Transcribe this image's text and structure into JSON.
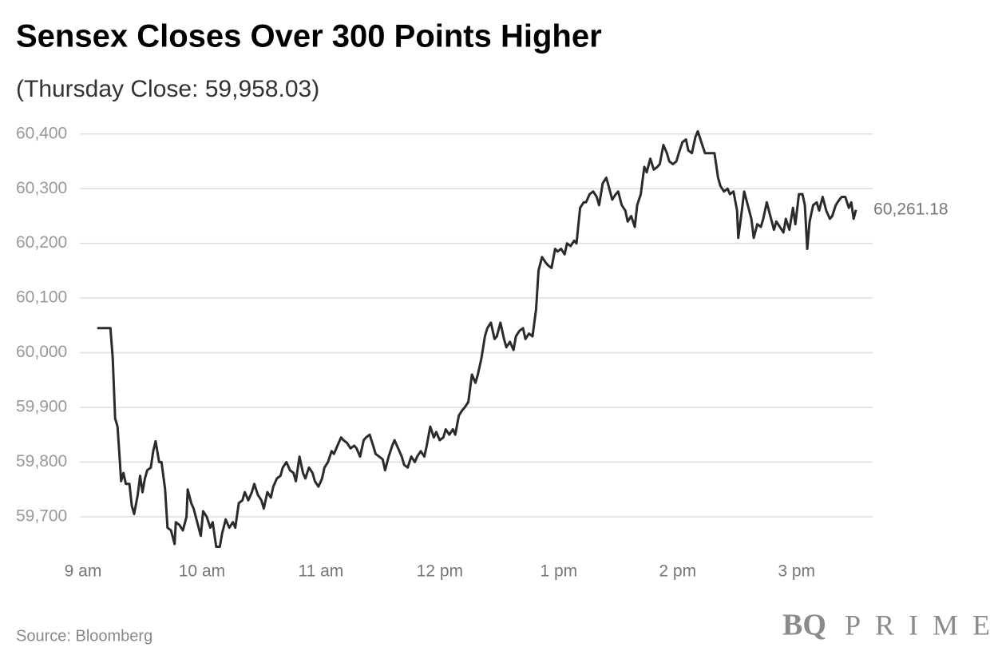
{
  "chart_data": {
    "type": "line",
    "title": "Sensex Closes Over 300 Points Higher",
    "subtitle": "(Thursday Close: 59,958.03)",
    "source": "Source: Bloomberg",
    "brand": [
      "BQ",
      "PRIME"
    ],
    "xlim": [
      9,
      15.64
    ],
    "ylim": [
      59637,
      60426
    ],
    "xticks": [
      {
        "value": 9,
        "label": "9 am"
      },
      {
        "value": 10,
        "label": "10 am"
      },
      {
        "value": 11,
        "label": "11 am"
      },
      {
        "value": 12,
        "label": "12 pm"
      },
      {
        "value": 13,
        "label": "1 pm"
      },
      {
        "value": 14,
        "label": "2 pm"
      },
      {
        "value": 15,
        "label": "3 pm"
      }
    ],
    "yticks": [
      {
        "value": 59700,
        "label": "59,700"
      },
      {
        "value": 59800,
        "label": "59,800"
      },
      {
        "value": 59900,
        "label": "59,900"
      },
      {
        "value": 60000,
        "label": "60,000"
      },
      {
        "value": 60100,
        "label": "60,100"
      },
      {
        "value": 60200,
        "label": "60,200"
      },
      {
        "value": 60300,
        "label": "60,300"
      },
      {
        "value": 60400,
        "label": "60,400"
      }
    ],
    "grid": true,
    "annotations": [
      {
        "x": 15.5,
        "y": 60261.18,
        "text": "60,261.18"
      }
    ],
    "series": [
      {
        "name": "Sensex",
        "color": "#2b2b2e",
        "x": [
          9.12,
          9.23,
          9.25,
          9.27,
          9.29,
          9.31,
          9.32,
          9.34,
          9.36,
          9.39,
          9.41,
          9.43,
          9.46,
          9.48,
          9.5,
          9.52,
          9.54,
          9.57,
          9.59,
          9.61,
          9.64,
          9.66,
          9.69,
          9.71,
          9.74,
          9.77,
          9.78,
          9.81,
          9.84,
          9.87,
          9.88,
          9.91,
          9.93,
          9.96,
          9.99,
          10.01,
          10.04,
          10.07,
          10.09,
          10.12,
          10.15,
          10.17,
          10.2,
          10.23,
          10.26,
          10.28,
          10.31,
          10.34,
          10.36,
          10.39,
          10.42,
          10.44,
          10.47,
          10.5,
          10.52,
          10.55,
          10.58,
          10.6,
          10.63,
          10.66,
          10.68,
          10.71,
          10.74,
          10.77,
          10.79,
          10.82,
          10.85,
          10.87,
          10.9,
          10.93,
          10.95,
          10.98,
          11.01,
          11.03,
          11.06,
          11.09,
          11.11,
          11.14,
          11.17,
          11.19,
          11.22,
          11.25,
          11.28,
          11.3,
          11.33,
          11.36,
          11.38,
          11.41,
          11.44,
          11.46,
          11.49,
          11.52,
          11.54,
          11.57,
          11.6,
          11.62,
          11.65,
          11.68,
          11.7,
          11.73,
          11.76,
          11.79,
          11.81,
          11.84,
          11.87,
          11.89,
          11.92,
          11.95,
          11.97,
          12.0,
          12.03,
          12.05,
          12.08,
          12.11,
          12.13,
          12.16,
          12.19,
          12.21,
          12.24,
          12.27,
          12.3,
          12.32,
          12.35,
          12.38,
          12.4,
          12.43,
          12.46,
          12.48,
          12.51,
          12.54,
          12.56,
          12.59,
          12.62,
          12.64,
          12.67,
          12.7,
          12.72,
          12.75,
          12.78,
          12.81,
          12.83,
          12.86,
          12.89,
          12.91,
          12.94,
          12.97,
          12.99,
          13.02,
          13.05,
          13.07,
          13.1,
          13.13,
          13.15,
          13.18,
          13.21,
          13.23,
          13.26,
          13.29,
          13.32,
          13.34,
          13.37,
          13.4,
          13.42,
          13.45,
          13.48,
          13.5,
          13.53,
          13.56,
          13.58,
          13.61,
          13.64,
          13.66,
          13.69,
          13.72,
          13.74,
          13.77,
          13.8,
          13.83,
          13.85,
          13.88,
          13.91,
          13.93,
          13.96,
          13.99,
          14.01,
          14.04,
          14.07,
          14.09,
          14.12,
          14.15,
          14.17,
          14.2,
          14.23,
          14.25,
          14.28,
          14.31,
          14.34,
          14.36,
          14.39,
          14.42,
          14.44,
          14.47,
          14.5,
          14.51,
          14.54,
          14.56,
          14.59,
          14.62,
          14.64,
          14.67,
          14.7,
          14.72,
          14.75,
          14.78,
          14.81,
          14.83,
          14.86,
          14.89,
          14.91,
          14.94,
          14.97,
          14.99,
          15.02,
          15.05,
          15.07,
          15.09,
          15.11,
          15.14,
          15.17,
          15.19,
          15.22,
          15.25,
          15.28,
          15.3,
          15.33,
          15.36,
          15.38,
          15.41,
          15.44,
          15.46,
          15.48,
          15.5
        ],
        "values": [
          60045,
          60045,
          59990,
          59880,
          59865,
          59800,
          59765,
          59780,
          59760,
          59760,
          59720,
          59705,
          59740,
          59775,
          59745,
          59770,
          59785,
          59790,
          59820,
          59838,
          59800,
          59800,
          59750,
          59680,
          59675,
          59650,
          59690,
          59685,
          59675,
          59700,
          59750,
          59725,
          59715,
          59690,
          59665,
          59710,
          59700,
          59680,
          59690,
          59645,
          59645,
          59670,
          59695,
          59680,
          59690,
          59680,
          59725,
          59730,
          59745,
          59730,
          59745,
          59760,
          59740,
          59730,
          59715,
          59745,
          59735,
          59755,
          59770,
          59775,
          59790,
          59800,
          59785,
          59780,
          59765,
          59810,
          59780,
          59770,
          59790,
          59780,
          59765,
          59755,
          59770,
          59790,
          59800,
          59820,
          59815,
          59830,
          59845,
          59840,
          59835,
          59825,
          59830,
          59825,
          59810,
          59840,
          59845,
          59850,
          59830,
          59815,
          59810,
          59805,
          59785,
          59810,
          59830,
          59840,
          59825,
          59810,
          59795,
          59790,
          59810,
          59800,
          59810,
          59820,
          59810,
          59830,
          59865,
          59845,
          59855,
          59840,
          59845,
          59860,
          59850,
          59860,
          59850,
          59885,
          59895,
          59900,
          59910,
          59960,
          59945,
          59960,
          59990,
          60030,
          60045,
          60055,
          60025,
          60030,
          60055,
          60025,
          60010,
          60020,
          60005,
          60030,
          60040,
          60045,
          60025,
          60035,
          60030,
          60080,
          60150,
          60175,
          60165,
          60160,
          60155,
          60190,
          60185,
          60190,
          60180,
          60200,
          60195,
          60205,
          60200,
          60265,
          60275,
          60275,
          60290,
          60295,
          60285,
          60270,
          60310,
          60320,
          60305,
          60280,
          60290,
          60295,
          60270,
          60260,
          60240,
          60250,
          60230,
          60270,
          60290,
          60340,
          60330,
          60355,
          60335,
          60340,
          60345,
          60380,
          60365,
          60350,
          60345,
          60350,
          60365,
          60385,
          60390,
          60370,
          60365,
          60395,
          60405,
          60385,
          60365,
          60365,
          60365,
          60365,
          60320,
          60305,
          60295,
          60300,
          60290,
          60295,
          60260,
          60210,
          60260,
          60295,
          60270,
          60245,
          60210,
          60235,
          60230,
          60245,
          60275,
          60250,
          60225,
          60240,
          60230,
          60220,
          60245,
          60225,
          60265,
          60235,
          60290,
          60290,
          60270,
          60190,
          60240,
          60270,
          60275,
          60260,
          60285,
          60260,
          60245,
          60250,
          60270,
          60280,
          60285,
          60285,
          60265,
          60275,
          60245,
          60261.18
        ]
      }
    ]
  }
}
